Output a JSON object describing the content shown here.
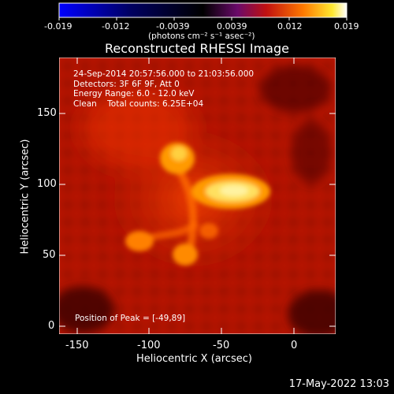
{
  "colorbar": {
    "ticks": [
      "-0.019",
      "-0.012",
      "-0.0039",
      "0.0039",
      "0.012",
      "0.019"
    ],
    "unit_label": "(photons cm⁻² s⁻¹ asec⁻²)"
  },
  "title": "Reconstructed RHESSI Image",
  "info": {
    "line1": "24-Sep-2014 20:57:56.000 to 21:03:56.000",
    "line2": "Detectors: 3F 6F 9F, Att 0",
    "line3": "Energy Range: 6.0 - 12.0 keV",
    "line4": "Clean    Total counts: 6.25E+04"
  },
  "peak_label": "Position of Peak = [-49,89]",
  "axes": {
    "xlabel": "Heliocentric X (arcsec)",
    "ylabel": "Heliocentric Y (arcsec)",
    "xticks": [
      "-150",
      "-100",
      "-50",
      "0"
    ],
    "yticks": [
      "0",
      "50",
      "100",
      "150"
    ],
    "xlim": [
      -165,
      25
    ],
    "ylim": [
      -5,
      180
    ]
  },
  "timestamp": "17-May-2022 13:03",
  "colors": {
    "background": "#000000",
    "image_base": "#b81400"
  }
}
